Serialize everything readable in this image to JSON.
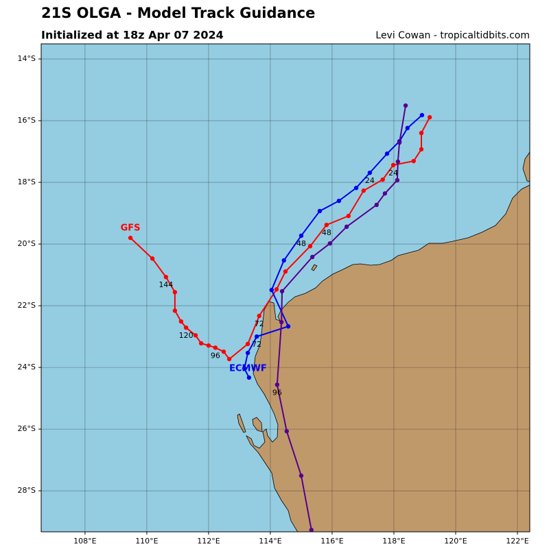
{
  "chart_data": {
    "type": "track-map",
    "title": "21S OLGA - Model Track Guidance",
    "subtitle": "Initialized at 18z Apr 07 2024",
    "credit": "Levi Cowan - tropicaltidbits.com",
    "xlim": [
      106.58,
      122.4
    ],
    "ylim": [
      -29.33,
      -13.51
    ],
    "xticks": [
      {
        "value": 108,
        "label": "108°E"
      },
      {
        "value": 110,
        "label": "110°E"
      },
      {
        "value": 112,
        "label": "112°E"
      },
      {
        "value": 114,
        "label": "114°E"
      },
      {
        "value": 116,
        "label": "116°E"
      },
      {
        "value": 118,
        "label": "118°E"
      },
      {
        "value": 120,
        "label": "120°E"
      },
      {
        "value": 122,
        "label": "122°E"
      }
    ],
    "yticks": [
      {
        "value": -14,
        "label": "14°S"
      },
      {
        "value": -16,
        "label": "16°S"
      },
      {
        "value": -18,
        "label": "18°S"
      },
      {
        "value": -20,
        "label": "20°S"
      },
      {
        "value": -22,
        "label": "22°S"
      },
      {
        "value": -24,
        "label": "24°S"
      },
      {
        "value": -26,
        "label": "26°S"
      },
      {
        "value": -28,
        "label": "28°S"
      }
    ],
    "grid": true,
    "series": [
      {
        "name": "GFS",
        "color": "#ff0000",
        "x": [
          119.16,
          118.89,
          118.89,
          118.64,
          117.98,
          117.64,
          117.02,
          116.53,
          115.82,
          115.29,
          114.49,
          114.2,
          113.64,
          113.27,
          112.67,
          112.49,
          112.22,
          112.0,
          111.76,
          111.58,
          111.27,
          111.11,
          110.91,
          110.91,
          110.62,
          110.18,
          109.47
        ],
        "values": [
          -15.89,
          -16.4,
          -16.93,
          -17.31,
          -17.44,
          -17.91,
          -18.27,
          -19.09,
          -19.38,
          -20.07,
          -20.89,
          -21.47,
          -22.33,
          -23.24,
          -23.73,
          -23.49,
          -23.36,
          -23.29,
          -23.22,
          -22.96,
          -22.71,
          -22.51,
          -22.16,
          -21.56,
          -21.07,
          -20.47,
          -19.8
        ],
        "value_labels": [
          null,
          null,
          null,
          null,
          "24",
          null,
          null,
          null,
          "48",
          null,
          null,
          null,
          "72",
          null,
          null,
          null,
          "96",
          null,
          null,
          null,
          "120",
          null,
          null,
          null,
          "144",
          null,
          null
        ]
      },
      {
        "name": "ECMWF",
        "color": "#0000ee",
        "x": [
          118.91,
          118.44,
          118.18,
          117.78,
          117.22,
          116.78,
          116.22,
          115.6,
          115.0,
          114.44,
          114.04,
          114.58,
          113.56,
          113.27,
          113.16,
          113.31
        ],
        "values": [
          -15.82,
          -16.24,
          -16.67,
          -17.07,
          -17.69,
          -18.18,
          -18.6,
          -18.93,
          -19.73,
          -20.53,
          -21.49,
          -22.67,
          -23.0,
          -23.53,
          -24.04,
          -24.33
        ],
        "value_labels": [
          null,
          null,
          null,
          null,
          "24",
          null,
          null,
          null,
          "48",
          null,
          null,
          null,
          "72",
          null,
          null,
          null
        ]
      },
      {
        "color": "#55008c",
        "x": [
          118.38,
          118.18,
          118.13,
          118.11,
          117.71,
          117.44,
          116.47,
          115.93,
          115.36,
          114.38,
          114.36,
          114.22,
          114.53,
          115.0,
          115.33
        ],
        "values": [
          -15.51,
          -16.71,
          -17.33,
          -17.93,
          -18.36,
          -18.73,
          -19.44,
          -19.98,
          -20.42,
          -21.53,
          -22.53,
          -24.56,
          -26.07,
          -27.51,
          -29.27
        ],
        "value_labels": [
          null,
          null,
          null,
          null,
          null,
          null,
          null,
          null,
          null,
          null,
          null,
          "96",
          null,
          null,
          null
        ]
      }
    ]
  }
}
